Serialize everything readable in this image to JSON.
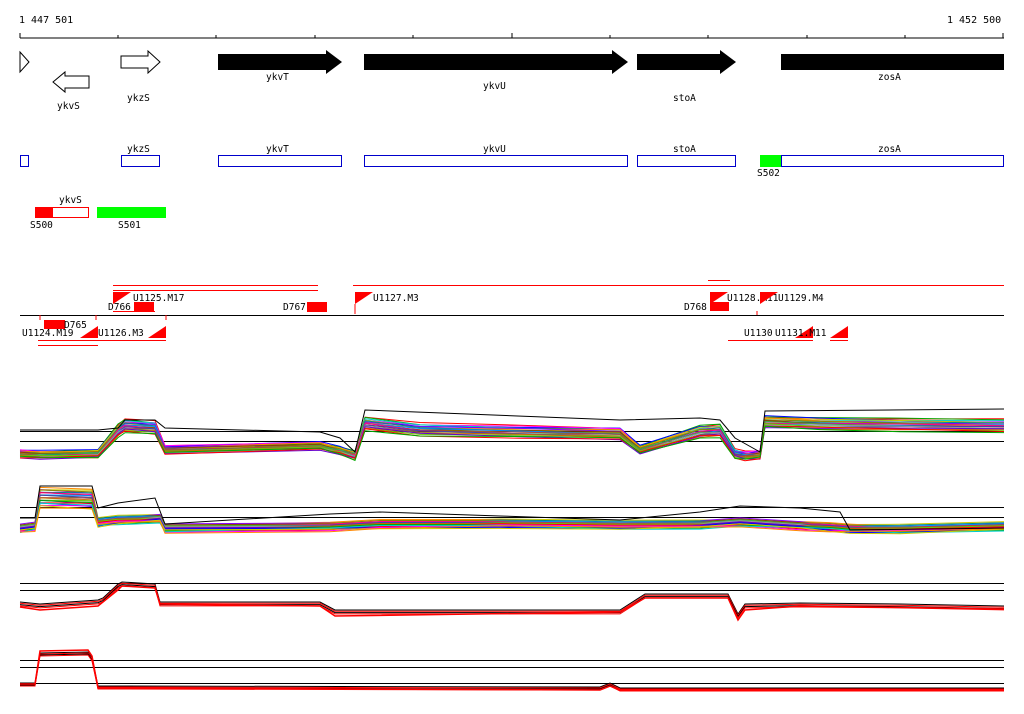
{
  "ruler": {
    "start_label": "1 447 501",
    "end_label": "1 452 500"
  },
  "genes": [
    {
      "label": "",
      "dir": "right",
      "style": "outline"
    },
    {
      "label": "ykvS",
      "dir": "left",
      "style": "outline"
    },
    {
      "label": "ykzS",
      "dir": "right",
      "style": "outline"
    },
    {
      "label": "ykvT",
      "dir": "right",
      "style": "filled"
    },
    {
      "label": "ykvU",
      "dir": "right",
      "style": "filled"
    },
    {
      "label": "stoA",
      "dir": "right",
      "style": "filled"
    },
    {
      "label": "zosA",
      "dir": "right",
      "style": "filled"
    }
  ],
  "cds_boxes": [
    {
      "label": ""
    },
    {
      "label": "ykzS"
    },
    {
      "label": "ykvT"
    },
    {
      "label": "ykvU"
    },
    {
      "label": "stoA"
    },
    {
      "label": "zosA"
    }
  ],
  "ykvS_box": {
    "label": "ykvS"
  },
  "regions": [
    {
      "label": "S500",
      "color": "#ff0000"
    },
    {
      "label": "S501",
      "color": "#00ff00"
    },
    {
      "label": "S502",
      "color": "#00ff00"
    }
  ],
  "features_above": [
    {
      "label": "U1125.M17"
    },
    {
      "label": "D766"
    },
    {
      "label": "D767"
    },
    {
      "label": "U1127.M3"
    },
    {
      "label": "D768"
    },
    {
      "label": "U1128.M11"
    },
    {
      "label": "U1129.M4"
    }
  ],
  "features_below": [
    {
      "label": "D765"
    },
    {
      "label": "U1124.M19"
    },
    {
      "label": "U1126.M3"
    },
    {
      "label": "U1130"
    },
    {
      "label": "U1131.M11"
    }
  ],
  "colors": {
    "feature_red": "#ff0000",
    "gene_black": "#000000",
    "cds_blue": "#0000cc",
    "region_green": "#00ff00"
  },
  "tracks": [
    {
      "name": "expression-profile-1",
      "style": "multicolor"
    },
    {
      "name": "expression-profile-2",
      "style": "multicolor"
    },
    {
      "name": "expression-profile-3",
      "style": "black-red"
    },
    {
      "name": "expression-profile-4",
      "style": "black-red"
    }
  ]
}
